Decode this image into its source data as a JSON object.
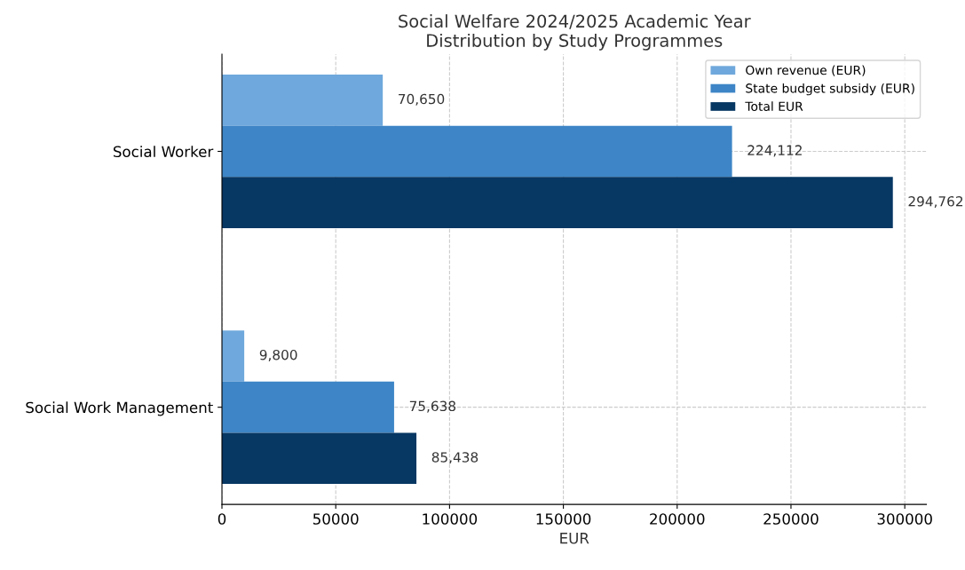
{
  "chart_data": {
    "type": "bar",
    "orientation": "horizontal",
    "title": "Social Welfare 2024/2025 Academic Year\nDistribution by Study Programmes",
    "xlabel": "EUR",
    "categories": [
      "Social Worker",
      "Social Work Management"
    ],
    "series": [
      {
        "name": "Own revenue (EUR)",
        "color": "#6fa8dc",
        "values": [
          70650,
          9800
        ],
        "value_labels": [
          "70,650",
          "9,800"
        ]
      },
      {
        "name": "State budget subsidy (EUR)",
        "color": "#3d85c6",
        "values": [
          224112,
          75638
        ],
        "value_labels": [
          "224,112",
          "75,638"
        ]
      },
      {
        "name": "Total EUR",
        "color": "#073763",
        "values": [
          294762,
          85438
        ],
        "value_labels": [
          "294,762",
          "85,438"
        ]
      }
    ],
    "xlim": [
      0,
      309500
    ],
    "xticks": [
      0,
      50000,
      100000,
      150000,
      200000,
      250000,
      300000
    ],
    "grid": true,
    "legend": "top right"
  }
}
